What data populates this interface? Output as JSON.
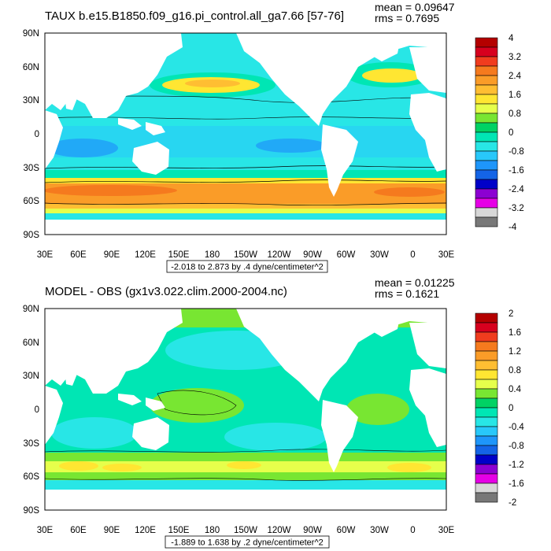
{
  "panels": [
    {
      "title": "TAUX b.e15.B1850.f09_g16.pi_control.all_ga7.66 [57-76]",
      "mean": "mean = 0.09647",
      "rms": "rms = 0.7695",
      "subtitle": "-2.018 to 2.873 by .4 dyne/centimeter^2",
      "lat_labels": [
        "90N",
        "60N",
        "30N",
        "0",
        "30S",
        "60S",
        "90S"
      ],
      "lon_labels": [
        "30E",
        "60E",
        "90E",
        "120E",
        "150E",
        "180",
        "150W",
        "120W",
        "90W",
        "60W",
        "30W",
        "0",
        "30E"
      ],
      "colorbar": {
        "labels": [
          "4",
          "3.2",
          "2.4",
          "1.6",
          "0.8",
          "0",
          "-0.8",
          "-1.6",
          "-2.4",
          "-3.2",
          "-4"
        ],
        "colors": [
          "#b40000",
          "#d7001e",
          "#f03c1e",
          "#f57a1e",
          "#fa9c28",
          "#ffbe32",
          "#ffe632",
          "#e6ff4b",
          "#78e632",
          "#00d264",
          "#00e6b4",
          "#28e6e6",
          "#28c8fa",
          "#1e96fa",
          "#1464e6",
          "#0000c8",
          "#8c00d2",
          "#e600e6",
          "#d7d7d7",
          "#787878"
        ]
      }
    },
    {
      "title": "MODEL - OBS (gx1v3.022.clim.2000-2004.nc)",
      "mean": "mean = 0.01225",
      "rms": "rms = 0.1621",
      "subtitle": "-1.889 to 1.638 by .2 dyne/centimeter^2",
      "lat_labels": [
        "90N",
        "60N",
        "30N",
        "0",
        "30S",
        "60S",
        "90S"
      ],
      "lon_labels": [
        "30E",
        "60E",
        "90E",
        "120E",
        "150E",
        "180",
        "150W",
        "120W",
        "90W",
        "60W",
        "30W",
        "0",
        "30E"
      ],
      "colorbar": {
        "labels": [
          "2",
          "1.6",
          "1.2",
          "0.8",
          "0.4",
          "0",
          "-0.4",
          "-0.8",
          "-1.2",
          "-1.6",
          "-2"
        ],
        "colors": [
          "#b40000",
          "#d7001e",
          "#f03c1e",
          "#f57a1e",
          "#fa9c28",
          "#ffbe32",
          "#ffe632",
          "#e6ff4b",
          "#78e632",
          "#00d264",
          "#00e6b4",
          "#28e6e6",
          "#28c8fa",
          "#1e96fa",
          "#1464e6",
          "#0000c8",
          "#8c00d2",
          "#e600e6",
          "#d7d7d7",
          "#787878"
        ]
      }
    }
  ],
  "colors": {
    "land": "#ffffff",
    "ocean_base_top": "#28e6e6",
    "ocean_base_bottom": "#28e6e6"
  }
}
